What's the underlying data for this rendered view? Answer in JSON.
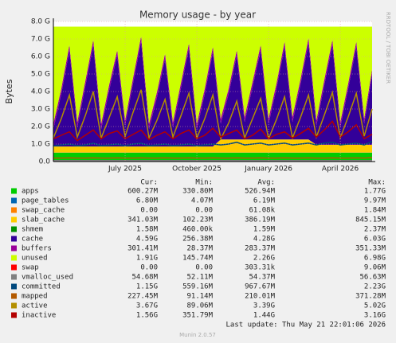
{
  "chart_data": {
    "type": "area",
    "title": "Memory usage - by year",
    "y_label": "Bytes",
    "side_text": "RRDTOOL / TOBI OETIKER",
    "footer": "Last update: Thu May 21 22:01:06 2026",
    "version": "Munin 2.0.57",
    "columns": [
      "Cur:",
      "Min:",
      "Avg:",
      "Max:"
    ],
    "grid": true,
    "xlim": [
      3,
      16.33
    ],
    "xticks": [
      {
        "value": 6,
        "label": "July 2025"
      },
      {
        "value": 9,
        "label": "October 2025"
      },
      {
        "value": 12,
        "label": "January 2026"
      },
      {
        "value": 15,
        "label": "April 2026"
      }
    ],
    "ylim": [
      0,
      8
    ],
    "yticks": [
      {
        "value": 0,
        "label": "0.0"
      },
      {
        "value": 1,
        "label": "1.0 G"
      },
      {
        "value": 2,
        "label": "2.0 G"
      },
      {
        "value": 3,
        "label": "3.0 G"
      },
      {
        "value": 4,
        "label": "4.0 G"
      },
      {
        "value": 5,
        "label": "5.0 G"
      },
      {
        "value": 6,
        "label": "6.0 G"
      },
      {
        "value": 7,
        "label": "7.0 G"
      },
      {
        "value": 8,
        "label": "8.0 G"
      }
    ],
    "x": [
      3,
      3.33,
      3.67,
      4,
      4.33,
      4.67,
      5,
      5.33,
      5.67,
      6,
      6.33,
      6.67,
      7,
      7.33,
      7.67,
      8,
      8.33,
      8.67,
      9,
      9.33,
      9.67,
      10,
      10.33,
      10.67,
      11,
      11.33,
      11.67,
      12,
      12.33,
      12.67,
      13,
      13.33,
      13.67,
      14,
      14.33,
      14.67,
      15,
      15.33,
      15.67,
      16,
      16.33
    ],
    "series": [
      {
        "name": "apps",
        "color": "#00cc00",
        "stacked": true,
        "cur": "600.27M",
        "min": "330.80M",
        "avg": "526.94M",
        "max": "1.77G",
        "values": [
          0.5,
          0.5,
          0.5,
          0.5,
          0.5,
          0.5,
          0.5,
          0.5,
          0.5,
          0.5,
          0.5,
          0.5,
          0.5,
          0.5,
          0.5,
          0.5,
          0.5,
          0.5,
          0.5,
          0.5,
          0.5,
          0.5,
          0.5,
          0.5,
          0.5,
          0.5,
          0.5,
          0.5,
          0.5,
          0.5,
          0.5,
          0.5,
          0.5,
          0.5,
          0.5,
          0.5,
          0.5,
          0.5,
          0.5,
          0.5,
          0.5
        ]
      },
      {
        "name": "page_tables",
        "color": "#0066b3",
        "stacked": true,
        "cur": "6.80M",
        "min": "4.07M",
        "avg": "6.19M",
        "max": "9.97M",
        "values": [
          0.01,
          0.01,
          0.01,
          0.01,
          0.01,
          0.01,
          0.01,
          0.01,
          0.01,
          0.01,
          0.01,
          0.01,
          0.01,
          0.01,
          0.01,
          0.01,
          0.01,
          0.01,
          0.01,
          0.01,
          0.01,
          0.01,
          0.01,
          0.01,
          0.01,
          0.01,
          0.01,
          0.01,
          0.01,
          0.01,
          0.01,
          0.01,
          0.01,
          0.01,
          0.01,
          0.01,
          0.01,
          0.01,
          0.01,
          0.01,
          0.01
        ]
      },
      {
        "name": "swap_cache",
        "color": "#ff8000",
        "stacked": true,
        "cur": "0.00",
        "min": "0.00",
        "avg": "61.08k",
        "max": "1.84M",
        "values": [
          0,
          0,
          0,
          0,
          0,
          0,
          0,
          0,
          0,
          0,
          0,
          0,
          0,
          0,
          0,
          0,
          0,
          0,
          0,
          0,
          0,
          0,
          0,
          0,
          0,
          0,
          0,
          0,
          0,
          0,
          0,
          0,
          0,
          0,
          0,
          0,
          0,
          0,
          0,
          0,
          0
        ]
      },
      {
        "name": "slab_cache",
        "color": "#ffcc00",
        "stacked": true,
        "cur": "341.03M",
        "min": "102.23M",
        "avg": "386.19M",
        "max": "845.15M",
        "values": [
          0.35,
          0.35,
          0.35,
          0.35,
          0.35,
          0.35,
          0.35,
          0.35,
          0.35,
          0.35,
          0.35,
          0.35,
          0.35,
          0.35,
          0.35,
          0.35,
          0.35,
          0.35,
          0.35,
          0.35,
          0.35,
          0.75,
          0.75,
          0.75,
          0.75,
          0.75,
          0.75,
          0.75,
          0.75,
          0.75,
          0.75,
          0.75,
          0.75,
          0.45,
          0.45,
          0.45,
          0.45,
          0.45,
          0.45,
          0.45,
          0.45
        ]
      },
      {
        "name": "shmem",
        "color": "#008f00",
        "stacked": true,
        "cur": "1.58M",
        "min": "460.00k",
        "avg": "1.59M",
        "max": "2.37M",
        "values": [
          0.002,
          0.002,
          0.002,
          0.002,
          0.002,
          0.002,
          0.002,
          0.002,
          0.002,
          0.002,
          0.002,
          0.002,
          0.002,
          0.002,
          0.002,
          0.002,
          0.002,
          0.002,
          0.002,
          0.002,
          0.002,
          0.002,
          0.002,
          0.002,
          0.002,
          0.002,
          0.002,
          0.002,
          0.002,
          0.002,
          0.002,
          0.002,
          0.002,
          0.002,
          0.002,
          0.002,
          0.002,
          0.002,
          0.002,
          0.002,
          0.002
        ]
      },
      {
        "name": "cache",
        "color": "#330099",
        "stacked": true,
        "cur": "4.59G",
        "min": "256.38M",
        "avg": "4.28G",
        "max": "6.03G",
        "values": [
          1.0,
          3.0,
          5.5,
          1.1,
          3.4,
          5.8,
          1.0,
          3.2,
          5.2,
          1.2,
          3.6,
          6.0,
          1.0,
          2.8,
          5.0,
          1.1,
          3.3,
          5.6,
          1.0,
          3.0,
          5.4,
          0.9,
          2.6,
          4.8,
          1.0,
          3.0,
          5.1,
          0.9,
          2.9,
          5.3,
          1.0,
          3.1,
          5.5,
          1.1,
          3.4,
          5.7,
          1.0,
          3.2,
          5.6,
          1.2,
          4.0
        ]
      },
      {
        "name": "buffers",
        "color": "#990099",
        "stacked": true,
        "cur": "301.41M",
        "min": "28.37M",
        "avg": "283.37M",
        "max": "351.33M",
        "values": [
          0.3,
          0.3,
          0.3,
          0.3,
          0.3,
          0.3,
          0.3,
          0.3,
          0.3,
          0.3,
          0.3,
          0.3,
          0.3,
          0.3,
          0.3,
          0.3,
          0.3,
          0.3,
          0.3,
          0.3,
          0.3,
          0.3,
          0.3,
          0.3,
          0.3,
          0.3,
          0.3,
          0.3,
          0.3,
          0.3,
          0.3,
          0.3,
          0.3,
          0.3,
          0.3,
          0.3,
          0.3,
          0.3,
          0.3,
          0.3,
          0.3
        ]
      },
      {
        "name": "unused",
        "color": "#ccff00",
        "stacked": true,
        "cur": "1.91G",
        "min": "145.74M",
        "avg": "2.26G",
        "max": "6.98G",
        "values": [
          5.54,
          3.54,
          1.04,
          5.44,
          3.14,
          0.74,
          5.54,
          3.34,
          1.34,
          5.34,
          2.94,
          0.54,
          5.54,
          3.74,
          1.54,
          5.44,
          3.24,
          0.94,
          5.54,
          3.54,
          1.14,
          5.24,
          3.54,
          1.34,
          5.14,
          3.14,
          1.04,
          5.24,
          3.24,
          0.84,
          5.14,
          3.04,
          0.64,
          5.34,
          3.04,
          0.74,
          5.44,
          3.24,
          0.84,
          5.24,
          2.44
        ]
      },
      {
        "name": "swap",
        "color": "#ff0000",
        "stacked": true,
        "cur": "0.00",
        "min": "0.00",
        "avg": "303.31k",
        "max": "9.06M",
        "values": [
          0,
          0,
          0,
          0,
          0,
          0,
          0,
          0,
          0,
          0,
          0,
          0,
          0,
          0,
          0,
          0,
          0,
          0,
          0,
          0,
          0,
          0,
          0,
          0,
          0,
          0,
          0,
          0,
          0,
          0,
          0,
          0,
          0,
          0,
          0,
          0,
          0,
          0,
          0,
          0,
          0
        ]
      },
      {
        "name": "vmalloc_used",
        "color": "#808080",
        "stacked": false,
        "cur": "54.68M",
        "min": "52.11M",
        "avg": "54.37M",
        "max": "56.63M",
        "values": [
          0.055,
          0.055,
          0.055,
          0.055,
          0.055,
          0.055,
          0.055,
          0.055,
          0.055,
          0.055,
          0.055,
          0.055,
          0.055,
          0.055,
          0.055,
          0.055,
          0.055,
          0.055,
          0.055,
          0.055,
          0.055,
          0.055,
          0.055,
          0.055,
          0.055,
          0.055,
          0.055,
          0.055,
          0.055,
          0.055,
          0.055,
          0.055,
          0.055,
          0.055,
          0.055,
          0.055,
          0.055,
          0.055,
          0.055,
          0.055,
          0.055
        ]
      },
      {
        "name": "committed",
        "color": "#00487d",
        "stacked": false,
        "cur": "1.15G",
        "min": "559.16M",
        "avg": "967.67M",
        "max": "2.23G",
        "values": [
          0.9,
          0.95,
          1.0,
          0.9,
          0.95,
          1.05,
          0.9,
          0.95,
          1.0,
          0.9,
          1.0,
          1.05,
          0.9,
          0.95,
          1.0,
          0.9,
          0.95,
          1.0,
          0.9,
          0.95,
          1.0,
          0.95,
          1.0,
          1.1,
          0.95,
          1.0,
          1.05,
          0.95,
          1.0,
          1.05,
          0.95,
          1.0,
          1.05,
          0.95,
          1.05,
          1.1,
          0.95,
          1.0,
          1.05,
          0.95,
          1.15
        ]
      },
      {
        "name": "mapped",
        "color": "#b35a00",
        "stacked": false,
        "cur": "227.45M",
        "min": "91.14M",
        "avg": "210.01M",
        "max": "371.28M",
        "values": [
          0.2,
          0.2,
          0.21,
          0.2,
          0.2,
          0.21,
          0.2,
          0.2,
          0.21,
          0.2,
          0.2,
          0.21,
          0.2,
          0.2,
          0.21,
          0.2,
          0.2,
          0.21,
          0.2,
          0.2,
          0.21,
          0.2,
          0.2,
          0.21,
          0.2,
          0.2,
          0.21,
          0.2,
          0.2,
          0.21,
          0.2,
          0.2,
          0.21,
          0.2,
          0.2,
          0.21,
          0.2,
          0.2,
          0.21,
          0.2,
          0.23
        ]
      },
      {
        "name": "active",
        "color": "#b38f00",
        "stacked": false,
        "cur": "3.67G",
        "min": "89.06M",
        "avg": "3.39G",
        "max": "5.02G",
        "values": [
          1.35,
          2.45,
          3.8,
          1.4,
          2.6,
          4.0,
          1.35,
          2.5,
          3.7,
          1.45,
          2.8,
          4.1,
          1.35,
          2.35,
          3.55,
          1.4,
          2.6,
          3.9,
          1.35,
          2.45,
          3.8,
          1.3,
          2.2,
          3.45,
          1.35,
          2.45,
          3.6,
          1.3,
          2.4,
          3.7,
          1.35,
          2.5,
          3.8,
          1.4,
          2.65,
          3.95,
          1.35,
          2.55,
          3.9,
          1.45,
          3.0
        ]
      },
      {
        "name": "inactive",
        "color": "#b30000",
        "stacked": false,
        "cur": "1.56G",
        "min": "351.79M",
        "avg": "1.44G",
        "max": "3.16G",
        "values": [
          1.3,
          1.5,
          1.7,
          1.2,
          1.5,
          1.8,
          1.3,
          1.6,
          1.75,
          1.3,
          1.55,
          1.8,
          1.25,
          1.5,
          1.7,
          1.3,
          1.6,
          1.8,
          1.3,
          1.5,
          1.9,
          1.4,
          1.6,
          1.8,
          1.3,
          1.5,
          1.85,
          1.3,
          1.55,
          1.7,
          1.35,
          1.6,
          1.9,
          1.4,
          1.8,
          2.3,
          1.4,
          1.7,
          2.1,
          1.3,
          1.56
        ]
      }
    ]
  }
}
